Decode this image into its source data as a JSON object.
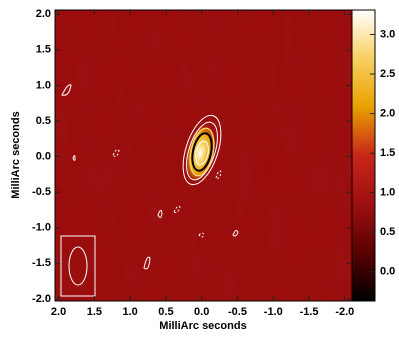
{
  "chart_data": {
    "type": "heatmap",
    "xlabel": "MilliArc seconds",
    "ylabel": "MilliArc seconds",
    "xlim": [
      2.05,
      -2.1
    ],
    "xticks": [
      {
        "value": 2,
        "label": "2.0"
      },
      {
        "value": 1.5,
        "label": "1.5"
      },
      {
        "value": 1,
        "label": "1.0"
      },
      {
        "value": 0.5,
        "label": "0.5"
      },
      {
        "value": 0,
        "label": "0.0"
      },
      {
        "value": -0.5,
        "label": "-0.5"
      },
      {
        "value": -1,
        "label": "-1.0"
      },
      {
        "value": -1.5,
        "label": "-1.5"
      },
      {
        "value": -2,
        "label": "-2.0"
      }
    ],
    "ylim": [
      -2.03,
      2.06
    ],
    "yticks": [
      {
        "value": 2,
        "label": "2.0"
      },
      {
        "value": 1.5,
        "label": "1.5"
      },
      {
        "value": 1,
        "label": "1.0"
      },
      {
        "value": 0.5,
        "label": "0.5"
      },
      {
        "value": 0,
        "label": "0.0"
      },
      {
        "value": -0.5,
        "label": "-0.5"
      },
      {
        "value": -1,
        "label": "-1.0"
      },
      {
        "value": -1.5,
        "label": "-1.5"
      },
      {
        "value": -2,
        "label": "-2.0"
      }
    ],
    "clim": [
      -0.37,
      3.31
    ],
    "cticks": [
      {
        "value": 3,
        "label": "3.0"
      },
      {
        "value": 2.5,
        "label": "2.5"
      },
      {
        "value": 2,
        "label": "2.0"
      },
      {
        "value": 1.5,
        "label": "1.5"
      },
      {
        "value": 1,
        "label": "1.0"
      },
      {
        "value": 0.5,
        "label": "0.5"
      },
      {
        "value": 0,
        "label": "0.0"
      }
    ],
    "colormap": [
      "#000000",
      "#5a0000",
      "#9e1010",
      "#c8261a",
      "#e8a000",
      "#f8d060",
      "#ffffff"
    ],
    "background": "#9a1010",
    "source": {
      "x": 0.02,
      "y": 0.05
    }
  }
}
